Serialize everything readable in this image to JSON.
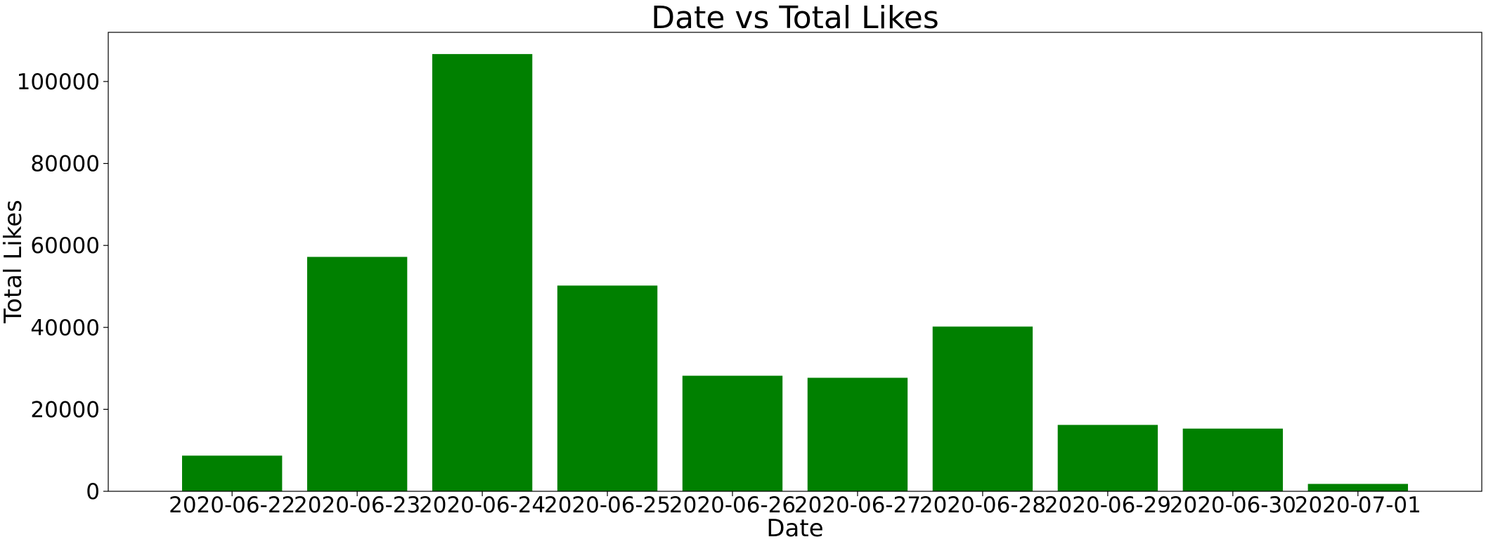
{
  "chart_data": {
    "type": "bar",
    "title": "Date vs Total Likes",
    "xlabel": "Date",
    "ylabel": "Total Likes",
    "categories": [
      "2020-06-22",
      "2020-06-23",
      "2020-06-24",
      "2020-06-25",
      "2020-06-26",
      "2020-06-27",
      "2020-06-28",
      "2020-06-29",
      "2020-06-30",
      "2020-07-01"
    ],
    "values": [
      8700,
      57200,
      106700,
      50200,
      28200,
      27700,
      40200,
      16200,
      15300,
      1800
    ],
    "ylim": [
      0,
      112000
    ],
    "yticks": [
      0,
      20000,
      40000,
      60000,
      80000,
      100000
    ],
    "bar_color": "#008000",
    "grid": false,
    "legend": "none"
  }
}
